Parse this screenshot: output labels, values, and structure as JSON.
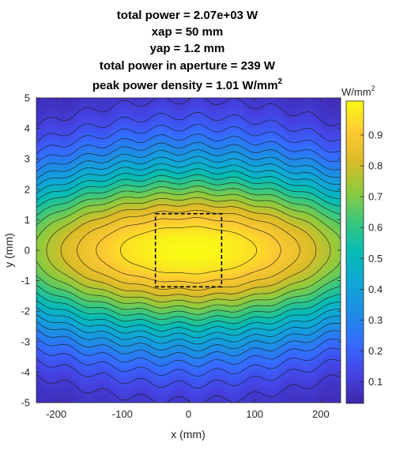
{
  "chart_data": {
    "type": "heatmap",
    "title_lines": [
      "total power = 2.07e+03 W",
      "xap = 50 mm",
      "yap = 1.2 mm",
      "total power in aperture = 239 W",
      "peak power density = 1.01 W/mm"
    ],
    "title_last_superscript": "2",
    "xlabel": "x (mm)",
    "ylabel": "y (mm)",
    "xlim": [
      -230,
      230
    ],
    "ylim": [
      -5,
      5
    ],
    "xticks": [
      -200,
      -100,
      0,
      100,
      200
    ],
    "yticks": [
      -5,
      -4,
      -3,
      -2,
      -1,
      0,
      1,
      2,
      3,
      4,
      5
    ],
    "colorbar": {
      "label": "W/mm",
      "label_superscript": "2",
      "range": [
        0.03,
        1.01
      ],
      "ticks": [
        0.1,
        0.2,
        0.3,
        0.4,
        0.5,
        0.6,
        0.7,
        0.8,
        0.9
      ],
      "colormap": "parula"
    },
    "peak_power_density": 1.01,
    "contour_levels": [
      0.05,
      0.1,
      0.15,
      0.2,
      0.25,
      0.3,
      0.35,
      0.4,
      0.45,
      0.5,
      0.55,
      0.6,
      0.65,
      0.7,
      0.75,
      0.8,
      0.85,
      0.9,
      0.95
    ],
    "aperture": {
      "x": [
        -50,
        50
      ],
      "y": [
        -1.2,
        1.2
      ],
      "line_style": "dashed",
      "color": "#000000"
    }
  }
}
